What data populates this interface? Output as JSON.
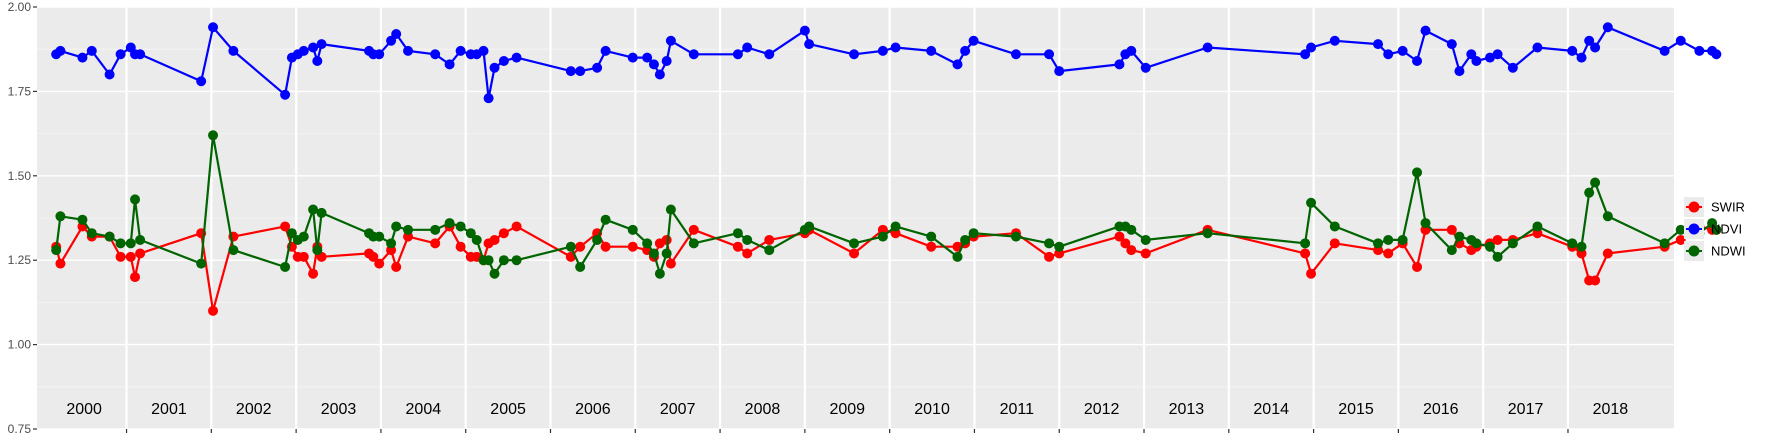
{
  "chart_data": {
    "type": "line",
    "title": "",
    "xlabel": "",
    "ylabel": "",
    "x_range": [
      1999.55,
      2018.55
    ],
    "ylim": [
      0.75,
      2.0
    ],
    "y_ticks": [
      "0.75",
      "1.00",
      "1.25",
      "1.50",
      "1.75",
      "2.00"
    ],
    "grid": true,
    "panel_background": "#ebebeb",
    "legend_position": "right",
    "year_labels": [
      "2000",
      "2001",
      "2002",
      "2003",
      "2004",
      "2005",
      "2006",
      "2007",
      "2008",
      "2009",
      "2010",
      "2011",
      "2012",
      "2013",
      "2014",
      "2015",
      "2016",
      "2017",
      "2018"
    ],
    "series": [
      {
        "name": "SWIR",
        "color": "#ff0000",
        "points": [
          [
            1999.67,
            1.29
          ],
          [
            1999.72,
            1.24
          ],
          [
            1999.98,
            1.35
          ],
          [
            2000.09,
            1.32
          ],
          [
            2000.3,
            1.32
          ],
          [
            2000.43,
            1.26
          ],
          [
            2000.55,
            1.26
          ],
          [
            2000.6,
            1.2
          ],
          [
            2000.66,
            1.27
          ],
          [
            2001.38,
            1.33
          ],
          [
            2001.52,
            1.1
          ],
          [
            2001.76,
            1.32
          ],
          [
            2002.37,
            1.35
          ],
          [
            2002.45,
            1.29
          ],
          [
            2002.52,
            1.26
          ],
          [
            2002.59,
            1.26
          ],
          [
            2002.7,
            1.21
          ],
          [
            2002.75,
            1.29
          ],
          [
            2002.8,
            1.26
          ],
          [
            2003.36,
            1.27
          ],
          [
            2003.41,
            1.26
          ],
          [
            2003.48,
            1.24
          ],
          [
            2003.62,
            1.28
          ],
          [
            2003.68,
            1.23
          ],
          [
            2003.82,
            1.32
          ],
          [
            2004.14,
            1.3
          ],
          [
            2004.31,
            1.35
          ],
          [
            2004.44,
            1.29
          ],
          [
            2004.56,
            1.26
          ],
          [
            2004.63,
            1.26
          ],
          [
            2004.71,
            1.25
          ],
          [
            2004.77,
            1.3
          ],
          [
            2004.84,
            1.31
          ],
          [
            2004.95,
            1.33
          ],
          [
            2005.1,
            1.35
          ],
          [
            2005.74,
            1.26
          ],
          [
            2005.85,
            1.29
          ],
          [
            2006.05,
            1.33
          ],
          [
            2006.15,
            1.29
          ],
          [
            2006.47,
            1.29
          ],
          [
            2006.64,
            1.28
          ],
          [
            2006.72,
            1.26
          ],
          [
            2006.79,
            1.3
          ],
          [
            2006.87,
            1.31
          ],
          [
            2006.92,
            1.24
          ],
          [
            2007.19,
            1.34
          ],
          [
            2007.71,
            1.29
          ],
          [
            2007.82,
            1.27
          ],
          [
            2008.08,
            1.31
          ],
          [
            2008.5,
            1.33
          ],
          [
            2008.55,
            1.34
          ],
          [
            2009.08,
            1.27
          ],
          [
            2009.42,
            1.34
          ],
          [
            2009.57,
            1.33
          ],
          [
            2009.99,
            1.29
          ],
          [
            2010.3,
            1.29
          ],
          [
            2010.39,
            1.3
          ],
          [
            2010.49,
            1.32
          ],
          [
            2010.99,
            1.33
          ],
          [
            2011.38,
            1.26
          ],
          [
            2011.5,
            1.27
          ],
          [
            2012.21,
            1.32
          ],
          [
            2012.28,
            1.3
          ],
          [
            2012.35,
            1.28
          ],
          [
            2012.52,
            1.27
          ],
          [
            2013.25,
            1.34
          ],
          [
            2014.4,
            1.27
          ],
          [
            2014.47,
            1.21
          ],
          [
            2014.75,
            1.3
          ],
          [
            2015.26,
            1.28
          ],
          [
            2015.38,
            1.27
          ],
          [
            2015.55,
            1.3
          ],
          [
            2015.72,
            1.23
          ],
          [
            2015.82,
            1.34
          ],
          [
            2016.13,
            1.34
          ],
          [
            2016.22,
            1.3
          ],
          [
            2016.36,
            1.28
          ],
          [
            2016.42,
            1.29
          ],
          [
            2016.58,
            1.3
          ],
          [
            2016.67,
            1.31
          ],
          [
            2016.85,
            1.31
          ],
          [
            2017.14,
            1.33
          ],
          [
            2017.55,
            1.29
          ],
          [
            2017.66,
            1.27
          ],
          [
            2017.75,
            1.19
          ],
          [
            2017.82,
            1.19
          ],
          [
            2017.97,
            1.27
          ],
          [
            2018.64,
            1.29
          ],
          [
            2018.83,
            1.31
          ],
          [
            2019.05,
            1.35
          ],
          [
            2019.2,
            1.34
          ],
          [
            2019.25,
            1.34
          ]
        ]
      },
      {
        "name": "NDVI",
        "color": "#0000ff",
        "points": [
          [
            1999.67,
            1.86
          ],
          [
            1999.72,
            1.87
          ],
          [
            1999.98,
            1.85
          ],
          [
            2000.09,
            1.87
          ],
          [
            2000.3,
            1.8
          ],
          [
            2000.43,
            1.86
          ],
          [
            2000.55,
            1.88
          ],
          [
            2000.6,
            1.86
          ],
          [
            2000.66,
            1.86
          ],
          [
            2001.38,
            1.78
          ],
          [
            2001.52,
            1.94
          ],
          [
            2001.76,
            1.87
          ],
          [
            2002.37,
            1.74
          ],
          [
            2002.45,
            1.85
          ],
          [
            2002.52,
            1.86
          ],
          [
            2002.59,
            1.87
          ],
          [
            2002.7,
            1.88
          ],
          [
            2002.75,
            1.84
          ],
          [
            2002.8,
            1.89
          ],
          [
            2003.36,
            1.87
          ],
          [
            2003.41,
            1.86
          ],
          [
            2003.48,
            1.86
          ],
          [
            2003.62,
            1.9
          ],
          [
            2003.68,
            1.92
          ],
          [
            2003.82,
            1.87
          ],
          [
            2004.14,
            1.86
          ],
          [
            2004.31,
            1.83
          ],
          [
            2004.44,
            1.87
          ],
          [
            2004.56,
            1.86
          ],
          [
            2004.63,
            1.86
          ],
          [
            2004.71,
            1.87
          ],
          [
            2004.77,
            1.73
          ],
          [
            2004.84,
            1.82
          ],
          [
            2004.95,
            1.84
          ],
          [
            2005.1,
            1.85
          ],
          [
            2005.74,
            1.81
          ],
          [
            2005.85,
            1.81
          ],
          [
            2006.05,
            1.82
          ],
          [
            2006.15,
            1.87
          ],
          [
            2006.47,
            1.85
          ],
          [
            2006.64,
            1.85
          ],
          [
            2006.72,
            1.83
          ],
          [
            2006.79,
            1.8
          ],
          [
            2006.87,
            1.84
          ],
          [
            2006.92,
            1.9
          ],
          [
            2007.19,
            1.86
          ],
          [
            2007.71,
            1.86
          ],
          [
            2007.82,
            1.88
          ],
          [
            2008.08,
            1.86
          ],
          [
            2008.5,
            1.93
          ],
          [
            2008.55,
            1.89
          ],
          [
            2009.08,
            1.86
          ],
          [
            2009.42,
            1.87
          ],
          [
            2009.57,
            1.88
          ],
          [
            2009.99,
            1.87
          ],
          [
            2010.3,
            1.83
          ],
          [
            2010.39,
            1.87
          ],
          [
            2010.49,
            1.9
          ],
          [
            2010.99,
            1.86
          ],
          [
            2011.38,
            1.86
          ],
          [
            2011.5,
            1.81
          ],
          [
            2012.21,
            1.83
          ],
          [
            2012.28,
            1.86
          ],
          [
            2012.35,
            1.87
          ],
          [
            2012.52,
            1.82
          ],
          [
            2013.25,
            1.88
          ],
          [
            2014.4,
            1.86
          ],
          [
            2014.47,
            1.88
          ],
          [
            2014.75,
            1.9
          ],
          [
            2015.26,
            1.89
          ],
          [
            2015.38,
            1.86
          ],
          [
            2015.55,
            1.87
          ],
          [
            2015.72,
            1.84
          ],
          [
            2015.82,
            1.93
          ],
          [
            2016.13,
            1.89
          ],
          [
            2016.22,
            1.81
          ],
          [
            2016.36,
            1.86
          ],
          [
            2016.42,
            1.84
          ],
          [
            2016.58,
            1.85
          ],
          [
            2016.67,
            1.86
          ],
          [
            2016.85,
            1.82
          ],
          [
            2017.14,
            1.88
          ],
          [
            2017.55,
            1.87
          ],
          [
            2017.66,
            1.85
          ],
          [
            2017.75,
            1.9
          ],
          [
            2017.82,
            1.88
          ],
          [
            2017.97,
            1.94
          ],
          [
            2018.64,
            1.87
          ],
          [
            2018.83,
            1.9
          ],
          [
            2019.05,
            1.87
          ],
          [
            2019.2,
            1.87
          ],
          [
            2019.25,
            1.86
          ]
        ]
      },
      {
        "name": "NDWI",
        "color": "#006400",
        "points": [
          [
            1999.67,
            1.28
          ],
          [
            1999.72,
            1.38
          ],
          [
            1999.98,
            1.37
          ],
          [
            2000.09,
            1.33
          ],
          [
            2000.3,
            1.32
          ],
          [
            2000.43,
            1.3
          ],
          [
            2000.55,
            1.3
          ],
          [
            2000.6,
            1.43
          ],
          [
            2000.66,
            1.31
          ],
          [
            2001.38,
            1.24
          ],
          [
            2001.52,
            1.62
          ],
          [
            2001.76,
            1.28
          ],
          [
            2002.37,
            1.23
          ],
          [
            2002.45,
            1.33
          ],
          [
            2002.52,
            1.31
          ],
          [
            2002.59,
            1.32
          ],
          [
            2002.7,
            1.4
          ],
          [
            2002.75,
            1.28
          ],
          [
            2002.8,
            1.39
          ],
          [
            2003.36,
            1.33
          ],
          [
            2003.41,
            1.32
          ],
          [
            2003.48,
            1.32
          ],
          [
            2003.62,
            1.3
          ],
          [
            2003.68,
            1.35
          ],
          [
            2003.82,
            1.34
          ],
          [
            2004.14,
            1.34
          ],
          [
            2004.31,
            1.36
          ],
          [
            2004.44,
            1.35
          ],
          [
            2004.56,
            1.33
          ],
          [
            2004.63,
            1.31
          ],
          [
            2004.71,
            1.25
          ],
          [
            2004.77,
            1.25
          ],
          [
            2004.84,
            1.21
          ],
          [
            2004.95,
            1.25
          ],
          [
            2005.1,
            1.25
          ],
          [
            2005.74,
            1.29
          ],
          [
            2005.85,
            1.23
          ],
          [
            2006.05,
            1.31
          ],
          [
            2006.15,
            1.37
          ],
          [
            2006.47,
            1.34
          ],
          [
            2006.64,
            1.3
          ],
          [
            2006.72,
            1.27
          ],
          [
            2006.79,
            1.21
          ],
          [
            2006.87,
            1.27
          ],
          [
            2006.92,
            1.4
          ],
          [
            2007.19,
            1.3
          ],
          [
            2007.71,
            1.33
          ],
          [
            2007.82,
            1.31
          ],
          [
            2008.08,
            1.28
          ],
          [
            2008.5,
            1.34
          ],
          [
            2008.55,
            1.35
          ],
          [
            2009.08,
            1.3
          ],
          [
            2009.42,
            1.32
          ],
          [
            2009.57,
            1.35
          ],
          [
            2009.99,
            1.32
          ],
          [
            2010.3,
            1.26
          ],
          [
            2010.39,
            1.31
          ],
          [
            2010.49,
            1.33
          ],
          [
            2010.99,
            1.32
          ],
          [
            2011.38,
            1.3
          ],
          [
            2011.5,
            1.29
          ],
          [
            2012.21,
            1.35
          ],
          [
            2012.28,
            1.35
          ],
          [
            2012.35,
            1.34
          ],
          [
            2012.52,
            1.31
          ],
          [
            2013.25,
            1.33
          ],
          [
            2014.4,
            1.3
          ],
          [
            2014.47,
            1.42
          ],
          [
            2014.75,
            1.35
          ],
          [
            2015.26,
            1.3
          ],
          [
            2015.38,
            1.31
          ],
          [
            2015.55,
            1.31
          ],
          [
            2015.72,
            1.51
          ],
          [
            2015.82,
            1.36
          ],
          [
            2016.13,
            1.28
          ],
          [
            2016.22,
            1.32
          ],
          [
            2016.36,
            1.31
          ],
          [
            2016.42,
            1.3
          ],
          [
            2016.58,
            1.29
          ],
          [
            2016.67,
            1.26
          ],
          [
            2016.85,
            1.3
          ],
          [
            2017.14,
            1.35
          ],
          [
            2017.55,
            1.3
          ],
          [
            2017.66,
            1.29
          ],
          [
            2017.75,
            1.45
          ],
          [
            2017.82,
            1.48
          ],
          [
            2017.97,
            1.38
          ],
          [
            2018.64,
            1.3
          ],
          [
            2018.83,
            1.34
          ],
          [
            2019.05,
            1.33
          ],
          [
            2019.2,
            1.36
          ],
          [
            2019.25,
            1.34
          ]
        ]
      }
    ]
  }
}
